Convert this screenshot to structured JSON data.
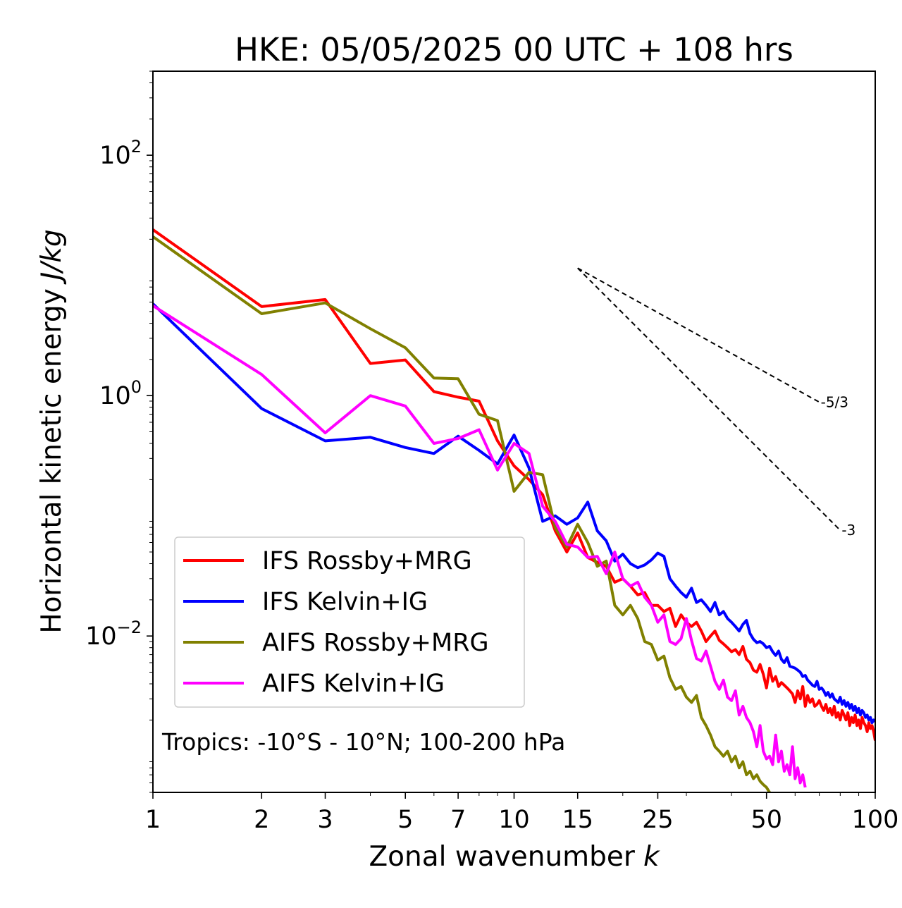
{
  "chart_data": {
    "type": "line",
    "title": "HKE: 05/05/2025 00 UTC + 108 hrs",
    "xlabel": "Zonal wavenumber",
    "xlabel_var": "k",
    "ylabel": "Horizontal kinetic energy",
    "ylabel_unit": "J/kg",
    "xscale": "log",
    "yscale": "log",
    "xlim": [
      1,
      100
    ],
    "ylim": [
      0.0005,
      500
    ],
    "xticks": [
      1,
      2,
      3,
      5,
      7,
      10,
      15,
      25,
      50,
      100
    ],
    "xtick_labels": [
      "1",
      "2",
      "3",
      "5",
      "7",
      "10",
      "15",
      "25",
      "50",
      "100"
    ],
    "yticks": [
      {
        "value": 100,
        "base": "10",
        "exp": "2"
      },
      {
        "value": 1,
        "base": "10",
        "exp": "0"
      },
      {
        "value": 0.01,
        "base": "10",
        "exp": "−2"
      }
    ],
    "legend_position": "lower-left",
    "annotation": "Tropics: -10°S - 10°N; 100-200 hPa",
    "reference_lines": [
      {
        "label": "-5/3",
        "slope": -1.6667,
        "x_start": 15,
        "y_start": 11.5,
        "x_end": 70,
        "color": "#000000"
      },
      {
        "label": "-3",
        "slope": -3,
        "x_start": 15,
        "y_start": 11.5,
        "x_end": 80,
        "color": "#000000"
      }
    ],
    "series": [
      {
        "name": "IFS Rossby+MRG",
        "color": "#ff0000",
        "x_start": 1,
        "values": [
          24,
          5.5,
          6.3,
          1.85,
          1.98,
          1.08,
          0.97,
          0.9,
          0.42,
          0.26,
          0.2,
          0.15,
          0.075,
          0.05,
          0.072,
          0.045,
          0.041,
          0.038,
          0.028,
          0.03,
          0.026,
          0.022,
          0.023,
          0.018,
          0.018,
          0.016,
          0.017,
          0.012,
          0.015,
          0.013,
          0.012,
          0.013,
          0.011,
          0.009,
          0.01,
          0.011,
          0.0092,
          0.0086,
          0.008,
          0.0074,
          0.0077,
          0.007,
          0.0082,
          0.0064,
          0.006,
          0.0052,
          0.005,
          0.0058,
          0.0048,
          0.0037,
          0.0054,
          0.0042,
          0.0046,
          0.0038,
          0.0041,
          0.0039,
          0.0037,
          0.0035,
          0.0033,
          0.0028,
          0.0035,
          0.003,
          0.0038,
          0.0026,
          0.0032,
          0.0028,
          0.003,
          0.0026,
          0.0027,
          0.0029,
          0.0026,
          0.0024,
          0.0027,
          0.0023,
          0.0025,
          0.0022,
          0.0026,
          0.0021,
          0.0023,
          0.002,
          0.0024,
          0.0022,
          0.002,
          0.0023,
          0.0018,
          0.0021,
          0.0019,
          0.0022,
          0.0018,
          0.002,
          0.0017,
          0.0021,
          0.0019,
          0.0018,
          0.0016,
          0.0019,
          0.0017,
          0.0018,
          0.0016,
          0.00135
        ]
      },
      {
        "name": "IFS Kelvin+IG",
        "color": "#0000ff",
        "x_start": 1,
        "values": [
          5.8,
          0.78,
          0.42,
          0.45,
          0.37,
          0.33,
          0.46,
          0.35,
          0.27,
          0.47,
          0.25,
          0.09,
          0.1,
          0.085,
          0.096,
          0.13,
          0.075,
          0.062,
          0.042,
          0.048,
          0.04,
          0.037,
          0.039,
          0.043,
          0.049,
          0.046,
          0.03,
          0.026,
          0.023,
          0.021,
          0.025,
          0.019,
          0.02,
          0.018,
          0.016,
          0.019,
          0.015,
          0.016,
          0.014,
          0.013,
          0.012,
          0.011,
          0.0125,
          0.0135,
          0.0105,
          0.0094,
          0.0088,
          0.009,
          0.0086,
          0.008,
          0.0082,
          0.0074,
          0.0069,
          0.0075,
          0.0064,
          0.006,
          0.0066,
          0.0056,
          0.0055,
          0.0054,
          0.0052,
          0.005,
          0.0046,
          0.0047,
          0.0043,
          0.0041,
          0.0039,
          0.0038,
          0.0042,
          0.0036,
          0.0037,
          0.0035,
          0.0032,
          0.0034,
          0.0031,
          0.0033,
          0.003,
          0.0029,
          0.0028,
          0.0031,
          0.0027,
          0.0029,
          0.0026,
          0.0028,
          0.0025,
          0.0027,
          0.0024,
          0.0026,
          0.0023,
          0.0025,
          0.0022,
          0.0024,
          0.0023,
          0.0021,
          0.0022,
          0.002,
          0.0021,
          0.0019,
          0.002,
          0.00195
        ]
      },
      {
        "name": "AIFS Rossby+MRG",
        "color": "#808000",
        "x_start": 1,
        "values": [
          21,
          4.8,
          5.9,
          3.6,
          2.5,
          1.4,
          1.38,
          0.7,
          0.62,
          0.16,
          0.23,
          0.22,
          0.08,
          0.055,
          0.085,
          0.06,
          0.038,
          0.042,
          0.018,
          0.015,
          0.018,
          0.014,
          0.009,
          0.0085,
          0.0063,
          0.0068,
          0.0045,
          0.0036,
          0.0038,
          0.0031,
          0.0028,
          0.0032,
          0.0021,
          0.0018,
          0.0015,
          0.0012,
          0.0011,
          0.001,
          0.0011,
          0.0009,
          0.001,
          0.0008,
          0.0009,
          0.0007,
          0.00075,
          0.00065,
          0.0007,
          0.00062,
          0.00058,
          0.00055,
          0.0005
        ]
      },
      {
        "name": "AIFS Kelvin+IG",
        "color": "#ff00ff",
        "x_start": 1,
        "values": [
          5.6,
          1.5,
          0.49,
          1.0,
          0.82,
          0.4,
          0.44,
          0.52,
          0.24,
          0.4,
          0.33,
          0.12,
          0.09,
          0.058,
          0.055,
          0.045,
          0.046,
          0.033,
          0.05,
          0.03,
          0.026,
          0.028,
          0.021,
          0.018,
          0.013,
          0.015,
          0.009,
          0.0085,
          0.0095,
          0.014,
          0.0092,
          0.0065,
          0.0062,
          0.0075,
          0.0056,
          0.0042,
          0.0036,
          0.0043,
          0.0031,
          0.0029,
          0.0035,
          0.0022,
          0.0026,
          0.0021,
          0.0019,
          0.0016,
          0.0012,
          0.0018,
          0.0011,
          0.00095,
          0.001,
          0.00085,
          0.0015,
          0.0009,
          0.0011,
          0.00075,
          0.00085,
          0.0007,
          0.0012,
          0.00065,
          0.0008,
          0.0006,
          0.0007,
          0.00055
        ]
      }
    ]
  }
}
